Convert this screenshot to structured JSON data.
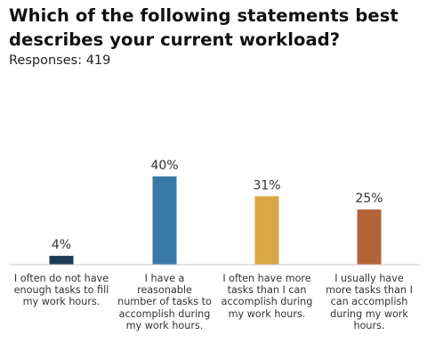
{
  "title": "Which of the following statements best describes your current workload?",
  "subtitle": "Responses: 419",
  "chart_data": {
    "type": "bar",
    "categories": [
      "I often do not have enough tasks to fill my work hours.",
      "I have a reasonable number of tasks to accomplish during my work hours.",
      "I often have more tasks than I can accomplish during my work hours.",
      "I usually have more tasks than I can accomplish during my work hours."
    ],
    "values": [
      4,
      40,
      31,
      25
    ],
    "value_labels": [
      "4%",
      "40%",
      "31%",
      "25%"
    ],
    "colors": [
      "#1f3a56",
      "#3a78a6",
      "#d9a844",
      "#b4623a"
    ],
    "ylim": [
      0,
      40
    ],
    "grid": false,
    "legend": "none"
  }
}
